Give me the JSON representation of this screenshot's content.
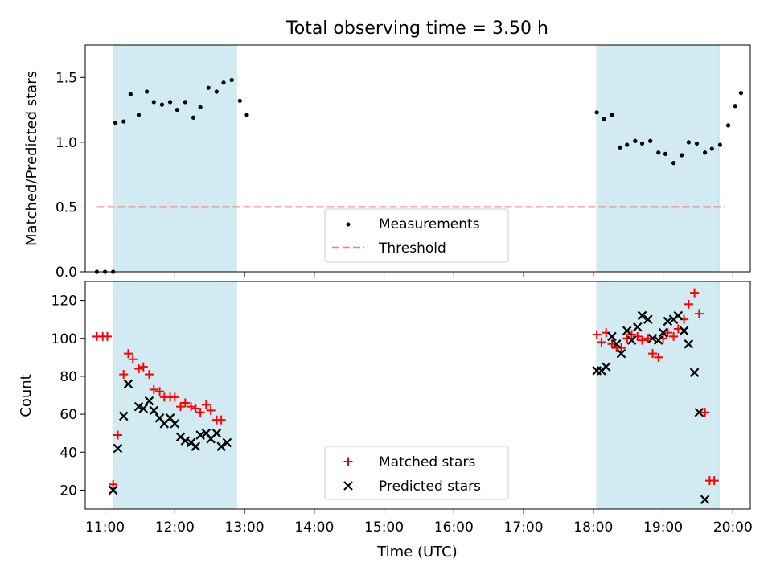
{
  "title": "Total observing time = 3.50 h",
  "colors": {
    "band": "#add8e6",
    "measure": "#000000",
    "threshold": "#f08080",
    "matched": "#ff0000",
    "predicted": "#000000"
  },
  "chart_data": [
    {
      "type": "scatter",
      "ylabel": "Matched/Predicted stars",
      "xlim": [
        "10:43",
        "20:15"
      ],
      "ylim": [
        0.0,
        1.75
      ],
      "yticks": [
        "0.0",
        "0.5",
        "1.0",
        "1.5"
      ],
      "yticks_values": [
        0.0,
        0.5,
        1.0,
        1.5
      ],
      "shaded_intervals": [
        [
          "11:07",
          "12:53"
        ],
        [
          "18:03",
          "19:48"
        ]
      ],
      "threshold": {
        "value": 0.5,
        "from": "10:53",
        "to": "19:53"
      },
      "legend": {
        "position": "lower center",
        "entries": [
          "Measurements",
          "Threshold"
        ]
      },
      "series": [
        {
          "name": "Measurements",
          "x": [
            "10:53",
            "11:00",
            "11:07",
            "11:09",
            "11:16",
            "11:22",
            "11:29",
            "11:36",
            "11:42",
            "11:49",
            "11:56",
            "12:02",
            "12:09",
            "12:16",
            "12:22",
            "12:29",
            "12:36",
            "12:42",
            "12:49",
            "12:56",
            "13:02",
            "18:03",
            "18:09",
            "18:16",
            "18:23",
            "18:29",
            "18:36",
            "18:42",
            "18:49",
            "18:56",
            "19:02",
            "19:09",
            "19:16",
            "19:22",
            "19:29",
            "19:36",
            "19:42",
            "19:49",
            "19:56",
            "20:02",
            "20:07"
          ],
          "y": [
            0.0,
            0.0,
            0.0,
            1.15,
            1.16,
            1.37,
            1.21,
            1.39,
            1.31,
            1.29,
            1.31,
            1.25,
            1.31,
            1.19,
            1.27,
            1.42,
            1.39,
            1.46,
            1.48,
            1.32,
            1.21,
            1.23,
            1.18,
            1.21,
            0.96,
            0.98,
            1.01,
            0.99,
            1.01,
            0.92,
            0.91,
            0.84,
            0.9,
            1.0,
            0.99,
            0.92,
            0.95,
            0.98,
            1.13,
            1.28,
            1.38
          ]
        }
      ]
    },
    {
      "type": "scatter",
      "xlabel": "Time (UTC)",
      "ylabel": "Count",
      "xlim": [
        "10:43",
        "20:15"
      ],
      "ylim": [
        10,
        130
      ],
      "xticks": [
        "11:00",
        "12:00",
        "13:00",
        "14:00",
        "15:00",
        "16:00",
        "17:00",
        "18:00",
        "19:00",
        "20:00"
      ],
      "yticks": [
        "20",
        "40",
        "60",
        "80",
        "100",
        "120"
      ],
      "yticks_values": [
        20,
        40,
        60,
        80,
        100,
        120
      ],
      "shaded_intervals": [
        [
          "11:07",
          "12:53"
        ],
        [
          "18:03",
          "19:48"
        ]
      ],
      "legend": {
        "position": "lower center",
        "entries": [
          "Matched stars",
          "Predicted stars"
        ]
      },
      "series": [
        {
          "name": "Matched stars",
          "x": [
            "10:53",
            "10:58",
            "11:02",
            "11:07",
            "11:11",
            "11:16",
            "11:20",
            "11:24",
            "11:29",
            "11:33",
            "11:38",
            "11:42",
            "11:47",
            "11:51",
            "11:56",
            "12:00",
            "12:05",
            "12:09",
            "12:14",
            "12:18",
            "12:22",
            "12:27",
            "12:31",
            "12:36",
            "12:40",
            "12:45",
            "12:49",
            "12:53",
            "18:03",
            "18:07",
            "18:11",
            "18:16",
            "18:20",
            "18:24",
            "18:29",
            "18:33",
            "18:38",
            "18:42",
            "18:47",
            "18:51",
            "18:56",
            "19:00",
            "19:04",
            "19:09",
            "19:13",
            "19:18",
            "19:22",
            "19:27",
            "19:31",
            "19:36",
            "19:40",
            "19:44",
            "19:49",
            "19:53"
          ],
          "y": [
            101,
            101,
            101,
            23,
            49,
            81,
            92,
            89,
            84,
            85,
            81,
            73,
            72,
            69,
            69,
            69,
            64,
            66,
            64,
            63,
            61,
            65,
            62,
            57,
            57,
            null,
            null,
            null,
            102,
            98,
            103,
            97,
            95,
            95,
            100,
            102,
            101,
            99,
            100,
            92,
            90,
            100,
            103,
            101,
            105,
            110,
            118,
            124,
            113,
            61,
            25,
            25,
            null,
            null
          ],
          "marker": "+"
        },
        {
          "name": "Predicted stars",
          "x": [
            "11:07",
            "11:11",
            "11:16",
            "11:20",
            "11:29",
            "11:33",
            "11:38",
            "11:42",
            "11:47",
            "11:51",
            "11:56",
            "12:00",
            "12:05",
            "12:09",
            "12:14",
            "12:18",
            "12:22",
            "12:27",
            "12:31",
            "12:36",
            "12:40",
            "12:45",
            "18:03",
            "18:07",
            "18:11",
            "18:16",
            "18:20",
            "18:24",
            "18:29",
            "18:33",
            "18:38",
            "18:42",
            "18:47",
            "18:51",
            "18:56",
            "19:00",
            "19:04",
            "19:09",
            "19:13",
            "19:18",
            "19:22",
            "19:27",
            "19:31",
            "19:36",
            "19:40",
            "19:44"
          ],
          "y": [
            20,
            42,
            59,
            76,
            64,
            63,
            67,
            62,
            58,
            55,
            58,
            55,
            48,
            46,
            45,
            43,
            49,
            50,
            47,
            50,
            43,
            45,
            83,
            83,
            85,
            101,
            97,
            92,
            104,
            99,
            106,
            112,
            110,
            100,
            99,
            103,
            109,
            110,
            112,
            104,
            97,
            82,
            61,
            15,
            null,
            null
          ],
          "marker": "x"
        }
      ]
    }
  ]
}
